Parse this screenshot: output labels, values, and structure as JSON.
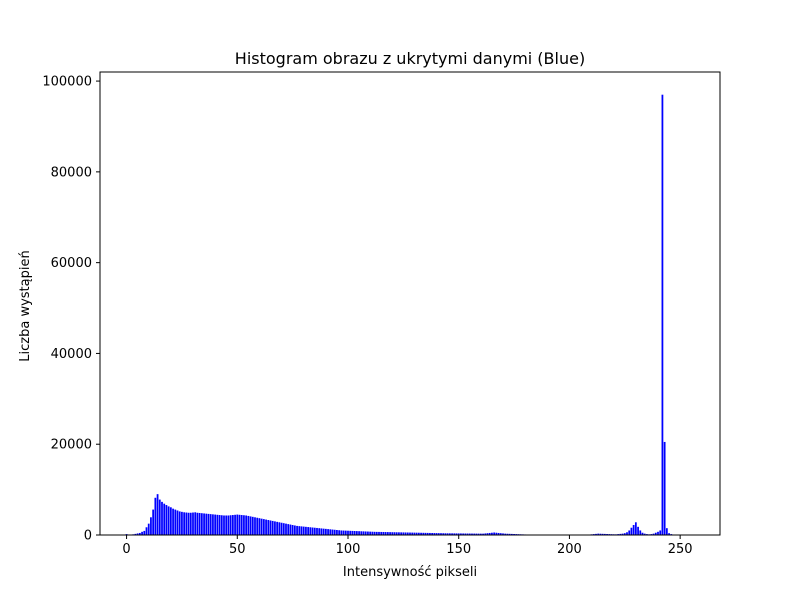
{
  "chart_data": {
    "type": "bar",
    "title": "Histogram obrazu z ukrytymi danymi (Blue)",
    "xlabel": "Intensywność pikseli",
    "ylabel": "Liczba wystąpień",
    "xlim": [
      -12,
      268
    ],
    "ylim": [
      0,
      102000
    ],
    "xticks": [
      0,
      50,
      100,
      150,
      200,
      250
    ],
    "xtick_labels": [
      "0",
      "50",
      "100",
      "150",
      "200",
      "250"
    ],
    "yticks": [
      0,
      20000,
      40000,
      60000,
      80000,
      100000
    ],
    "ytick_labels": [
      "0",
      "20000",
      "40000",
      "60000",
      "80000",
      "100000"
    ],
    "grid": false,
    "legend": "none",
    "bar_color": "#0000ff",
    "bar_width": 0.8,
    "x_start": 0,
    "values": [
      200,
      0,
      0,
      150,
      250,
      350,
      450,
      700,
      900,
      1700,
      2500,
      3900,
      5600,
      8200,
      9000,
      7800,
      7300,
      6900,
      6600,
      6300,
      6100,
      5800,
      5600,
      5400,
      5200,
      5100,
      5000,
      4950,
      4900,
      4900,
      4950,
      5000,
      4900,
      4850,
      4800,
      4750,
      4700,
      4650,
      4600,
      4550,
      4500,
      4450,
      4400,
      4350,
      4300,
      4300,
      4300,
      4350,
      4400,
      4450,
      4500,
      4450,
      4400,
      4350,
      4300,
      4200,
      4100,
      4000,
      3900,
      3800,
      3700,
      3600,
      3500,
      3400,
      3300,
      3200,
      3100,
      3000,
      2900,
      2800,
      2700,
      2600,
      2500,
      2400,
      2300,
      2200,
      2100,
      2000,
      1950,
      1900,
      1850,
      1800,
      1750,
      1700,
      1650,
      1600,
      1550,
      1500,
      1450,
      1400,
      1350,
      1300,
      1250,
      1200,
      1150,
      1100,
      1050,
      1000,
      980,
      960,
      940,
      920,
      900,
      880,
      860,
      840,
      820,
      800,
      780,
      760,
      740,
      720,
      700,
      690,
      680,
      670,
      660,
      650,
      640,
      630,
      620,
      610,
      600,
      590,
      580,
      570,
      560,
      550,
      540,
      530,
      520,
      510,
      500,
      490,
      480,
      470,
      460,
      450,
      440,
      430,
      420,
      410,
      400,
      390,
      380,
      375,
      370,
      365,
      360,
      355,
      350,
      345,
      340,
      335,
      330,
      325,
      320,
      315,
      310,
      305,
      300,
      300,
      350,
      400,
      450,
      500,
      550,
      500,
      450,
      400,
      350,
      300,
      280,
      260,
      240,
      220,
      200,
      180,
      160,
      140,
      120,
      100,
      80,
      60,
      40,
      20,
      0,
      0,
      0,
      0,
      0,
      0,
      0,
      0,
      0,
      0,
      0,
      0,
      0,
      0,
      0,
      0,
      0,
      0,
      0,
      0,
      0,
      0,
      50,
      100,
      150,
      200,
      250,
      300,
      280,
      260,
      240,
      220,
      200,
      180,
      160,
      150,
      200,
      250,
      300,
      400,
      600,
      1000,
      1600,
      2200,
      2800,
      1800,
      1000,
      500,
      300,
      200,
      150,
      200,
      300,
      500,
      700,
      1000,
      97000,
      20500,
      1500,
      400,
      200,
      100,
      50,
      0,
      0,
      0,
      0,
      0,
      0,
      0
    ]
  }
}
